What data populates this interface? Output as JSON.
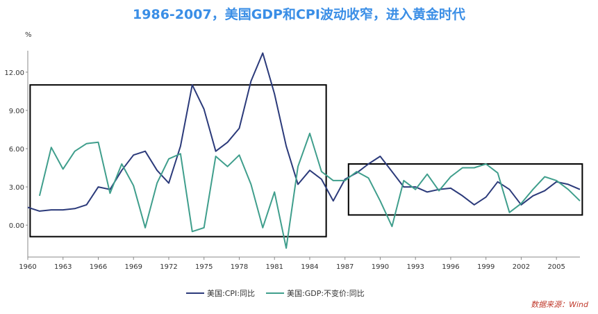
{
  "title": "1986-2007，美国GDP和CPI波动收窄，进入黄金时代",
  "source": "数据来源：Wind",
  "colors": {
    "title": "#3a8ee6",
    "cpi": "#2b3a7a",
    "gdp": "#3f9e8c",
    "source": "#c0392b",
    "box": "#000000",
    "axis": "#888888"
  },
  "chart_data": {
    "type": "line",
    "title": "1986-2007，美国GDP和CPI波动收窄，进入黄金时代",
    "ylabel": "%",
    "ylim": [
      -2.5,
      14.5
    ],
    "xlim": [
      1960,
      2007
    ],
    "yticks": [
      "12.00",
      "9.00",
      "6.00",
      "3.00",
      "0.00"
    ],
    "ytick_values": [
      12,
      9,
      6,
      3,
      0
    ],
    "xticks": [
      "1960",
      "1963",
      "1966",
      "1969",
      "1972",
      "1975",
      "1978",
      "1981",
      "1984",
      "1987",
      "1990",
      "1993",
      "1996",
      "1999",
      "2002",
      "2005"
    ],
    "xtick_values": [
      1960,
      1963,
      1966,
      1969,
      1972,
      1975,
      1978,
      1981,
      1984,
      1987,
      1990,
      1993,
      1996,
      1999,
      2002,
      2005
    ],
    "legend_position": "bottom",
    "series": [
      {
        "name": "美国:CPI:同比",
        "color": "#2b3a7a",
        "x": [
          1960,
          1961,
          1962,
          1963,
          1964,
          1965,
          1966,
          1967,
          1968,
          1969,
          1970,
          1971,
          1972,
          1973,
          1974,
          1975,
          1976,
          1977,
          1978,
          1979,
          1980,
          1981,
          1982,
          1983,
          1984,
          1985,
          1986,
          1987,
          1988,
          1989,
          1990,
          1991,
          1992,
          1993,
          1994,
          1995,
          1996,
          1997,
          1998,
          1999,
          2000,
          2001,
          2002,
          2003,
          2004,
          2005,
          2006,
          2007
        ],
        "values": [
          1.4,
          1.1,
          1.2,
          1.2,
          1.3,
          1.6,
          3.0,
          2.8,
          4.3,
          5.5,
          5.8,
          4.3,
          3.3,
          6.2,
          11.0,
          9.1,
          5.8,
          6.5,
          7.6,
          11.3,
          13.5,
          10.3,
          6.2,
          3.2,
          4.3,
          3.6,
          1.9,
          3.6,
          4.1,
          4.8,
          5.4,
          4.2,
          3.0,
          3.0,
          2.6,
          2.8,
          2.9,
          2.3,
          1.6,
          2.2,
          3.4,
          2.8,
          1.6,
          2.3,
          2.7,
          3.4,
          3.2,
          2.8
        ]
      },
      {
        "name": "美国:GDP:不变价:同比",
        "color": "#3f9e8c",
        "x": [
          1961,
          1962,
          1963,
          1964,
          1965,
          1966,
          1967,
          1968,
          1969,
          1970,
          1971,
          1972,
          1973,
          1974,
          1975,
          1976,
          1977,
          1978,
          1979,
          1980,
          1981,
          1982,
          1983,
          1984,
          1985,
          1986,
          1987,
          1988,
          1989,
          1990,
          1991,
          1992,
          1993,
          1994,
          1995,
          1996,
          1997,
          1998,
          1999,
          2000,
          2001,
          2002,
          2003,
          2004,
          2005,
          2006,
          2007
        ],
        "values": [
          2.3,
          6.1,
          4.4,
          5.8,
          6.4,
          6.5,
          2.5,
          4.8,
          3.1,
          -0.2,
          3.3,
          5.2,
          5.6,
          -0.5,
          -0.2,
          5.4,
          4.6,
          5.5,
          3.2,
          -0.2,
          2.6,
          -1.8,
          4.6,
          7.2,
          4.2,
          3.5,
          3.5,
          4.2,
          3.7,
          1.9,
          -0.1,
          3.5,
          2.8,
          4.0,
          2.7,
          3.8,
          4.5,
          4.5,
          4.8,
          4.1,
          1.0,
          1.7,
          2.8,
          3.8,
          3.5,
          2.8,
          1.9
        ]
      }
    ],
    "annotations": [
      {
        "type": "box",
        "x0": 1960.2,
        "x1": 1985.4,
        "y0": -0.9,
        "y1": 11.0
      },
      {
        "type": "box",
        "x0": 1987.3,
        "x1": 2007.2,
        "y0": 0.8,
        "y1": 4.8
      }
    ]
  }
}
